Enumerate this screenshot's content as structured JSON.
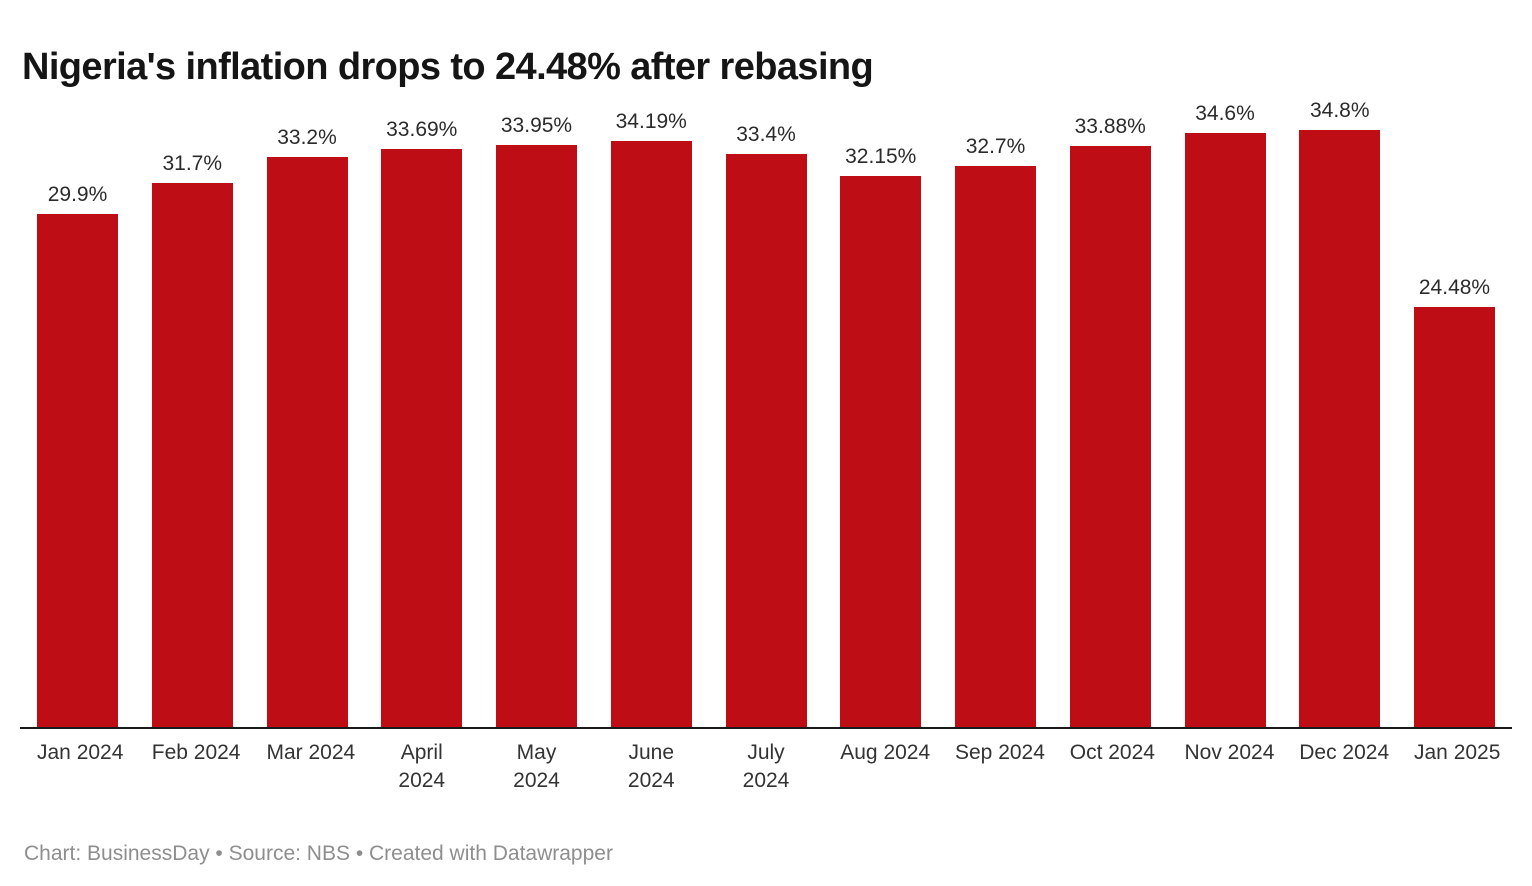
{
  "title": "Nigeria's inflation drops to 24.48% after rebasing",
  "footer": {
    "text": "Chart: BusinessDay • Source: NBS • Created with Datawrapper"
  },
  "colors": {
    "bar": "#bf0d16",
    "title_text": "#151515",
    "value_label_text": "#2b2b2b",
    "axis_label_text": "#333333",
    "axis_line": "#1a1a1a",
    "footer_text": "#8e8e8e",
    "background": "#ffffff"
  },
  "chart_data": {
    "type": "bar",
    "title": "Nigeria's inflation drops to 24.48% after rebasing",
    "categories": [
      "Jan 2024",
      "Feb 2024",
      "Mar 2024",
      "April 2024",
      "May 2024",
      "June 2024",
      "July 2024",
      "Aug 2024",
      "Sep 2024",
      "Oct 2024",
      "Nov 2024",
      "Dec 2024",
      "Jan 2025"
    ],
    "x_tick_labels": [
      "Jan 2024",
      "Feb 2024",
      "Mar 2024",
      "April\n2024",
      "May\n2024",
      "June\n2024",
      "July\n2024",
      "Aug 2024",
      "Sep 2024",
      "Oct 2024",
      "Nov 2024",
      "Dec 2024",
      "Jan 2025"
    ],
    "values": [
      29.9,
      31.7,
      33.2,
      33.69,
      33.95,
      34.19,
      33.4,
      32.15,
      32.7,
      33.88,
      34.6,
      34.8,
      24.48
    ],
    "value_labels": [
      "29.9%",
      "31.7%",
      "33.2%",
      "33.69%",
      "33.95%",
      "34.19%",
      "33.4%",
      "32.15%",
      "32.7%",
      "33.88%",
      "34.6%",
      "34.8%",
      "24.48%"
    ],
    "xlabel": "",
    "ylabel": "",
    "ylim": [
      0,
      34.8
    ],
    "grid": false,
    "legend": false,
    "y_axis_visible": false,
    "source_note": "Chart: BusinessDay • Source: NBS • Created with Datawrapper"
  }
}
